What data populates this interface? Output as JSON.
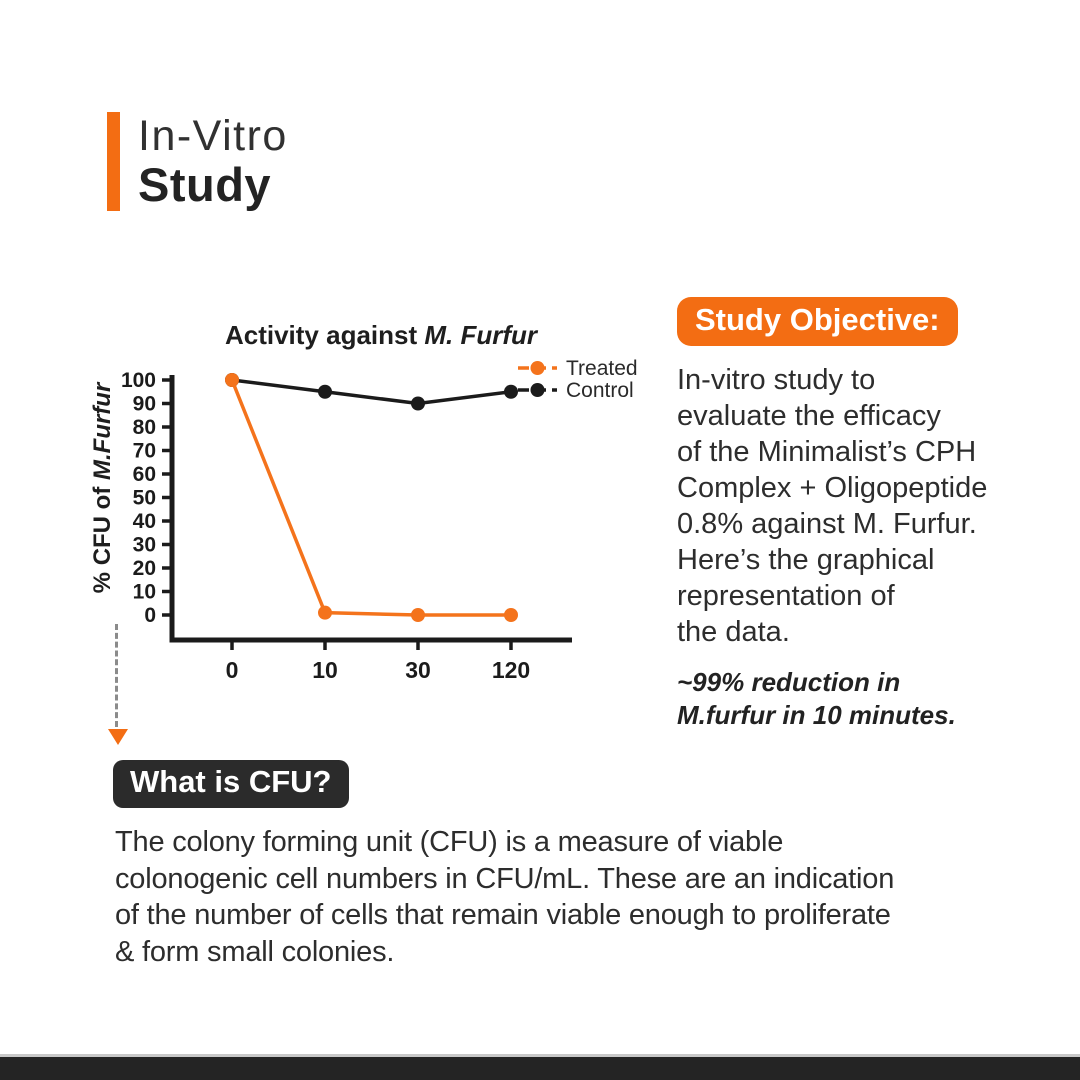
{
  "header": {
    "title_line1": "In-Vitro",
    "title_line2": "Study"
  },
  "colors": {
    "orange": "#F36D13",
    "dark_badge": "#2B2B2B",
    "bottom_bar": "#242424",
    "body_text": "#2D2D2D",
    "chart_black": "#1B1B1B"
  },
  "study_objective": {
    "badge_label": "Study Objective:",
    "body_lines": [
      "In-vitro study to",
      "evaluate the efficacy",
      "of the Minimalist’s CPH",
      "Complex + Oligopeptide",
      "0.8% against M. Furfur.",
      "Here’s the graphical",
      "representation of",
      "the data."
    ],
    "note_lines": [
      "~99% reduction in",
      "M.furfur in 10 minutes."
    ]
  },
  "cfu": {
    "badge_label": "What is CFU?",
    "body_lines": [
      "The colony forming unit (CFU) is a measure of viable",
      "colonogenic cell numbers in CFU/mL. These are an indication",
      "of the number of cells that remain viable enough to proliferate",
      "& form small colonies."
    ]
  },
  "chart_data": {
    "type": "line",
    "title": "Activity against M. Furfur",
    "title_regular": "Activity against ",
    "title_italic": "M. Furfur",
    "ylabel": "% CFU of M.Furfur",
    "ylabel_regular": "% CFU of ",
    "ylabel_italic": "M.Furfur",
    "xlabel": "",
    "categories": [
      "0",
      "10",
      "30",
      "120"
    ],
    "y_ticks": [
      100,
      90,
      80,
      70,
      60,
      50,
      40,
      30,
      20,
      10,
      0
    ],
    "ylim": [
      0,
      100
    ],
    "grid": false,
    "legend_position": "top-right",
    "series": [
      {
        "name": "Treated",
        "color": "#F4731C",
        "values": [
          100,
          1,
          0,
          0
        ]
      },
      {
        "name": "Control",
        "color": "#1B1B1B",
        "values": [
          100,
          95,
          90,
          95
        ]
      }
    ]
  }
}
